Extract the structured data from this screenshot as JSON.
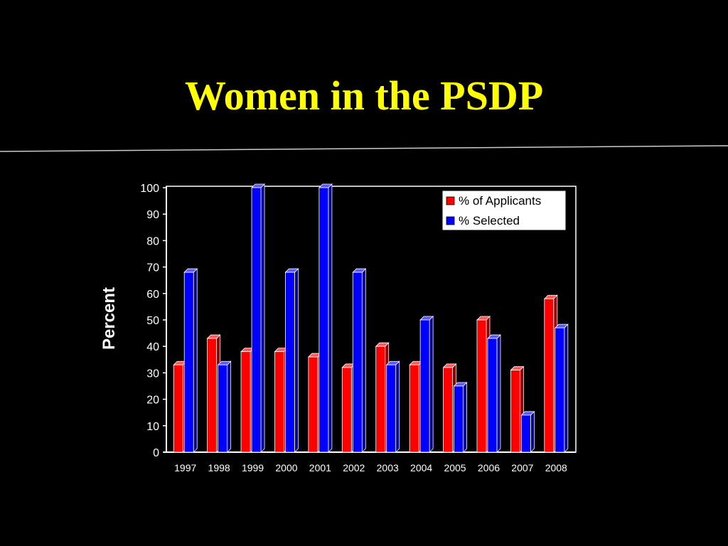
{
  "slide": {
    "title": "Women in the PSDP"
  },
  "colors": {
    "background": "#000000",
    "title": "#ffff00",
    "applicants": "#ff0000",
    "selected": "#0000ff",
    "axis": "#ffffff",
    "text": "#ffffff"
  },
  "chart_data": {
    "type": "bar",
    "style": "3d-clustered",
    "title": "",
    "xlabel": "",
    "ylabel": "Percent",
    "ylim": [
      0,
      100
    ],
    "yticks": [
      0,
      10,
      20,
      30,
      40,
      50,
      60,
      70,
      80,
      90,
      100
    ],
    "categories": [
      "1997",
      "1998",
      "1999",
      "2000",
      "2001",
      "2002",
      "2003",
      "2004",
      "2005",
      "2006",
      "2007",
      "2008"
    ],
    "series": [
      {
        "name": "% of Applicants",
        "color": "#ff0000",
        "values": [
          33,
          43,
          38,
          38,
          36,
          32,
          40,
          33,
          32,
          50,
          31,
          58
        ]
      },
      {
        "name": "% Selected",
        "color": "#0000ff",
        "values": [
          68,
          33,
          100,
          68,
          100,
          68,
          33,
          50,
          25,
          43,
          14,
          47
        ]
      }
    ],
    "legend": {
      "position": "top-right"
    },
    "grid": false
  }
}
